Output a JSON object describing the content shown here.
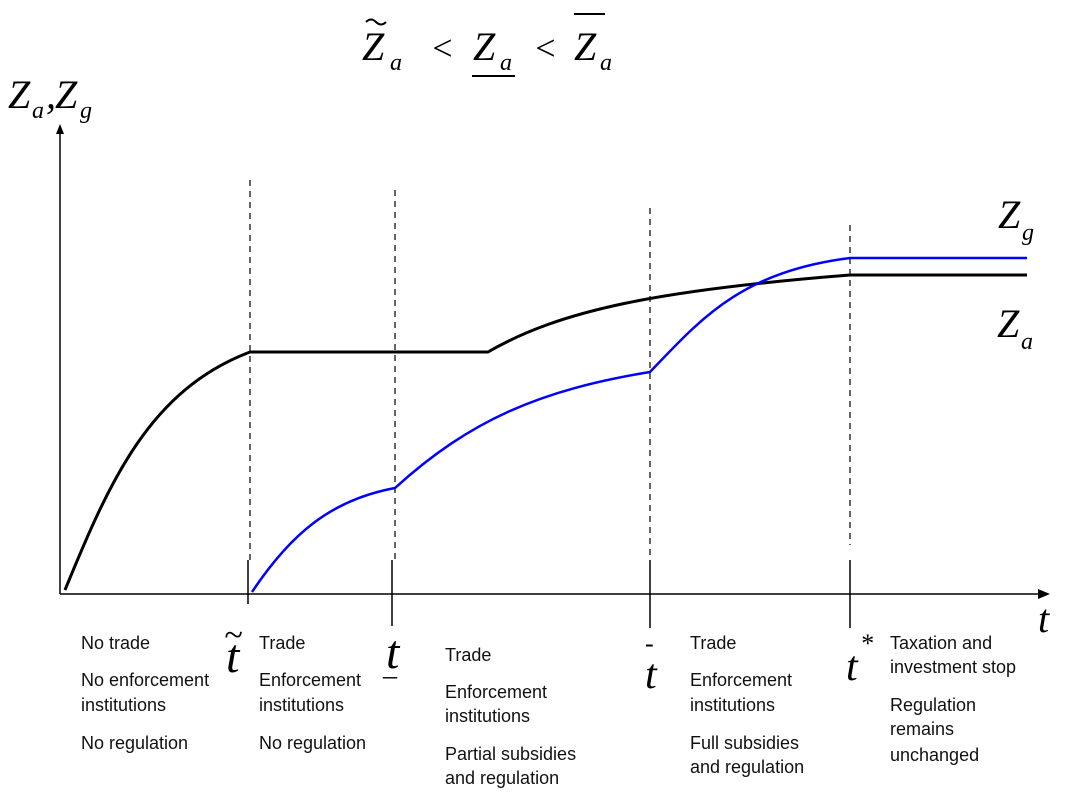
{
  "title": {
    "tilde_z": "Z",
    "sub_a": "a",
    "lt1": "<",
    "under_z": "Z",
    "lt2": "<",
    "bar_z": "Z"
  },
  "y_axis_label": {
    "z1": "Z",
    "sub1": "a",
    "comma": ",",
    "z2": "Z",
    "sub2": "g"
  },
  "x_axis_label": "t",
  "curve_labels": {
    "zg": "Z",
    "zg_sub": "g",
    "za": "Z",
    "za_sub": "a"
  },
  "colors": {
    "za_curve": "#000000",
    "zg_curve": "#0000ff",
    "axis": "#000000"
  },
  "time_markers": [
    {
      "id": "t_tilde",
      "symbol": "t",
      "mark": "~"
    },
    {
      "id": "t_under",
      "symbol": "t",
      "mark": "_"
    },
    {
      "id": "t_bar",
      "symbol": "t",
      "mark": "-"
    },
    {
      "id": "t_star",
      "symbol": "t",
      "mark": "*"
    }
  ],
  "phases": [
    {
      "lines": [
        "No trade",
        "No enforcement",
        "institutions",
        "No regulation"
      ]
    },
    {
      "lines": [
        "Trade",
        "Enforcement",
        "institutions",
        "No regulation"
      ]
    },
    {
      "lines": [
        "Trade",
        "Enforcement",
        "institutions",
        "Partial subsidies",
        "and regulation"
      ]
    },
    {
      "lines": [
        "Trade",
        "Enforcement",
        "institutions",
        "Full subsidies",
        "and regulation"
      ]
    },
    {
      "lines": [
        "Taxation and",
        "investment stop",
        "Regulation",
        "remains",
        "unchanged"
      ]
    }
  ]
}
